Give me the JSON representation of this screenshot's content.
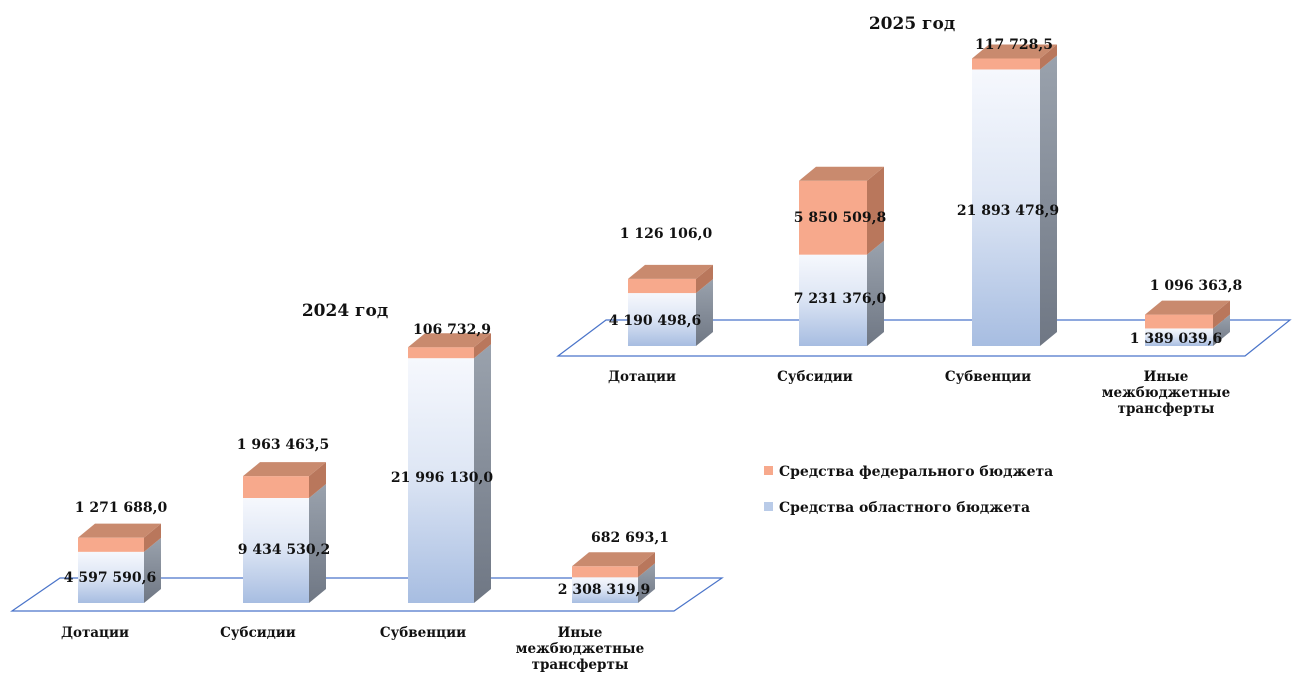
{
  "chart_data": [
    {
      "type": "bar",
      "stacked": true,
      "title": "2024 год",
      "categories": [
        "Дотации",
        "Субсидии",
        "Субвенции",
        "Иные межбюджетные трансферты"
      ],
      "series": [
        {
          "name": "Средства областного  бюджета",
          "values": [
            4597590.6,
            9434530.2,
            21996130.0,
            2308319.9
          ],
          "labels": [
            "4 597 590,6",
            "9 434 530,2",
            "21 996 130,0",
            "2 308 319,9"
          ]
        },
        {
          "name": "Средства федерального бюджета",
          "values": [
            1271688.0,
            1963463.5,
            106732.9,
            682693.1
          ],
          "labels": [
            "1 271 688,0",
            "1 963 463,5",
            "106 732,9",
            "682 693,1"
          ]
        }
      ]
    },
    {
      "type": "bar",
      "stacked": true,
      "title": "2025 год",
      "categories": [
        "Дотации",
        "Субсидии",
        "Субвенции",
        "Иные межбюджетные трансферты"
      ],
      "series": [
        {
          "name": "Средства областного  бюджета",
          "values": [
            4190498.6,
            7231376.0,
            21893478.9,
            1389039.6
          ],
          "labels": [
            "4 190 498,6",
            "7 231 376,0",
            "21 893 478,9",
            "1 389 039,6"
          ]
        },
        {
          "name": "Средства федерального бюджета",
          "values": [
            1126106.0,
            5850509.8,
            117728.5,
            1096363.8
          ],
          "labels": [
            "1 126 106,0",
            "5 850 509,8",
            "117 728,5",
            "1 096 363,8"
          ]
        }
      ]
    }
  ],
  "legend": {
    "items": [
      {
        "label": "Средства федерального бюджета",
        "color": "#f7a98c"
      },
      {
        "label": "Средства областного  бюджета",
        "color": "#b9cbe8"
      }
    ]
  },
  "colors": {
    "regional_front_top": "#f4f7fc",
    "regional_front_bottom": "#a9bfe2",
    "regional_side": "#7f8896",
    "federal_front": "#f7a98c",
    "federal_side": "#b9775c",
    "federal_top": "#c98a6e",
    "floor": "#4a74c9"
  }
}
